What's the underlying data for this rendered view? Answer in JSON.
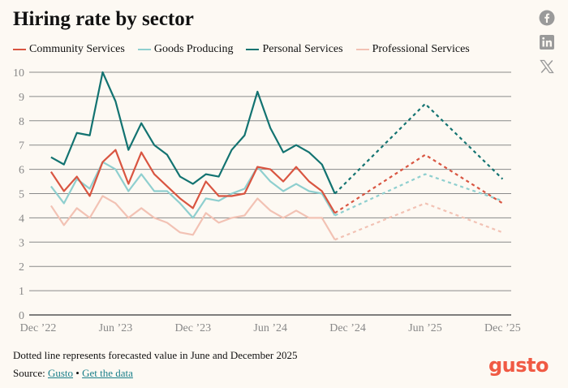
{
  "title": "Hiring rate by sector",
  "note": "Dotted line represents forecasted value in June and December 2025",
  "source": {
    "label": "Source:",
    "link1": "Gusto",
    "separator": "•",
    "link2": "Get the data"
  },
  "logo": "gusto",
  "social": [
    "facebook",
    "linkedin",
    "x"
  ],
  "colors": {
    "community": "#d95541",
    "goods": "#8fcfcf",
    "personal": "#137371",
    "professional": "#f2c2b4",
    "logo": "#f05a44",
    "icon": "#9a9a9a"
  },
  "chart_data": {
    "type": "line",
    "title": "Hiring rate by sector",
    "xlabel": "",
    "ylabel": "",
    "ylim": [
      0,
      10
    ],
    "yticks": [
      0,
      1,
      2,
      3,
      4,
      5,
      6,
      7,
      8,
      9,
      10
    ],
    "xtick_labels": [
      "Dec ’22",
      "Jun ’23",
      "Dec ’23",
      "Jun ’24",
      "Dec ’24",
      "Jun ’25",
      "Dec ’25"
    ],
    "xtick_months": [
      0,
      6,
      12,
      18,
      24,
      30,
      36
    ],
    "x_months": [
      1,
      2,
      3,
      4,
      5,
      6,
      7,
      8,
      9,
      10,
      11,
      12,
      13,
      14,
      15,
      16,
      17,
      18,
      19,
      20,
      21,
      22,
      23
    ],
    "forecast_months": [
      23,
      30,
      36
    ],
    "grid": true,
    "legend": "top-left",
    "series": [
      {
        "name": "Community Services",
        "key": "community",
        "values": [
          5.9,
          5.1,
          5.7,
          4.9,
          6.3,
          6.8,
          5.4,
          6.7,
          5.8,
          5.3,
          4.8,
          4.4,
          5.5,
          4.9,
          4.9,
          5.0,
          6.1,
          6.0,
          5.5,
          6.1,
          5.5,
          5.1,
          4.2
        ],
        "forecast": [
          4.2,
          6.6,
          4.6
        ]
      },
      {
        "name": "Goods Producing",
        "key": "goods",
        "values": [
          5.3,
          4.6,
          5.6,
          5.2,
          6.3,
          6.0,
          5.1,
          5.8,
          5.1,
          5.1,
          4.6,
          4.0,
          4.8,
          4.7,
          5.0,
          5.2,
          6.1,
          5.5,
          5.1,
          5.4,
          5.1,
          5.0,
          4.1
        ],
        "forecast": [
          4.1,
          5.8,
          4.7
        ]
      },
      {
        "name": "Personal Services",
        "key": "personal",
        "values": [
          6.5,
          6.2,
          7.5,
          7.4,
          10.0,
          8.8,
          6.8,
          7.9,
          7.0,
          6.6,
          5.7,
          5.4,
          5.8,
          5.7,
          6.8,
          7.4,
          9.2,
          7.7,
          6.7,
          7.0,
          6.7,
          6.2,
          5.0
        ],
        "forecast": [
          5.0,
          8.7,
          5.6
        ]
      },
      {
        "name": "Professional Services",
        "key": "professional",
        "values": [
          4.5,
          3.7,
          4.4,
          4.0,
          4.9,
          4.6,
          4.0,
          4.4,
          4.0,
          3.8,
          3.4,
          3.3,
          4.2,
          3.8,
          4.0,
          4.1,
          4.8,
          4.3,
          4.0,
          4.3,
          4.0,
          4.0,
          3.1
        ],
        "forecast": [
          3.1,
          4.6,
          3.4
        ]
      }
    ]
  }
}
